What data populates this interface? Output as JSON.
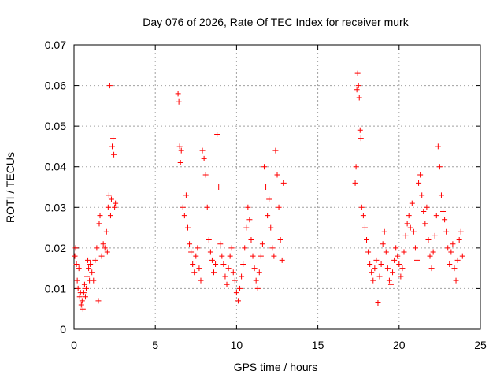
{
  "chart_data": {
    "type": "scatter",
    "title": "Day 076 of 2026, Rate Of TEC Index for receiver murk",
    "xlabel": "GPS time / hours",
    "ylabel": "ROTI / TECUs",
    "xlim": [
      0,
      25
    ],
    "ylim": [
      0,
      0.07
    ],
    "x_ticks": [
      0,
      5,
      10,
      15,
      20,
      25
    ],
    "x_tick_labels": [
      "0",
      "5",
      "10",
      "15",
      "20",
      "25"
    ],
    "y_ticks": [
      0,
      0.01,
      0.02,
      0.03,
      0.04,
      0.05,
      0.06,
      0.07
    ],
    "y_tick_labels": [
      "0",
      "0.01",
      "0.02",
      "0.03",
      "0.04",
      "0.05",
      "0.06",
      "0.07"
    ],
    "grid": true,
    "marker": "+",
    "series": [
      {
        "name": "ROTI",
        "color": "#ff0000",
        "points": [
          [
            0.05,
            0.018
          ],
          [
            0.1,
            0.02
          ],
          [
            0.15,
            0.016
          ],
          [
            0.2,
            0.012
          ],
          [
            0.25,
            0.01
          ],
          [
            0.3,
            0.015
          ],
          [
            0.35,
            0.008
          ],
          [
            0.4,
            0.009
          ],
          [
            0.45,
            0.006
          ],
          [
            0.5,
            0.007
          ],
          [
            0.55,
            0.005
          ],
          [
            0.6,
            0.009
          ],
          [
            0.65,
            0.011
          ],
          [
            0.7,
            0.008
          ],
          [
            0.75,
            0.01
          ],
          [
            0.8,
            0.013
          ],
          [
            0.85,
            0.017
          ],
          [
            0.9,
            0.015
          ],
          [
            0.95,
            0.012
          ],
          [
            1.0,
            0.016
          ],
          [
            1.1,
            0.014
          ],
          [
            1.2,
            0.012
          ],
          [
            1.3,
            0.017
          ],
          [
            1.4,
            0.02
          ],
          [
            1.5,
            0.007
          ],
          [
            1.55,
            0.026
          ],
          [
            1.6,
            0.028
          ],
          [
            1.7,
            0.018
          ],
          [
            1.8,
            0.021
          ],
          [
            1.9,
            0.02
          ],
          [
            2.0,
            0.024
          ],
          [
            2.05,
            0.019
          ],
          [
            2.1,
            0.03
          ],
          [
            2.15,
            0.033
          ],
          [
            2.2,
            0.06
          ],
          [
            2.25,
            0.028
          ],
          [
            2.3,
            0.032
          ],
          [
            2.35,
            0.045
          ],
          [
            2.4,
            0.047
          ],
          [
            2.45,
            0.043
          ],
          [
            2.5,
            0.03
          ],
          [
            2.55,
            0.031
          ],
          [
            6.4,
            0.058
          ],
          [
            6.45,
            0.056
          ],
          [
            6.5,
            0.045
          ],
          [
            6.55,
            0.041
          ],
          [
            6.6,
            0.044
          ],
          [
            6.7,
            0.03
          ],
          [
            6.8,
            0.028
          ],
          [
            6.9,
            0.033
          ],
          [
            7.0,
            0.025
          ],
          [
            7.1,
            0.021
          ],
          [
            7.2,
            0.019
          ],
          [
            7.3,
            0.016
          ],
          [
            7.4,
            0.014
          ],
          [
            7.5,
            0.018
          ],
          [
            7.6,
            0.02
          ],
          [
            7.7,
            0.015
          ],
          [
            7.8,
            0.012
          ],
          [
            7.9,
            0.044
          ],
          [
            8.0,
            0.042
          ],
          [
            8.1,
            0.038
          ],
          [
            8.2,
            0.03
          ],
          [
            8.3,
            0.022
          ],
          [
            8.4,
            0.019
          ],
          [
            8.5,
            0.017
          ],
          [
            8.6,
            0.014
          ],
          [
            8.7,
            0.016
          ],
          [
            8.8,
            0.048
          ],
          [
            8.9,
            0.035
          ],
          [
            9.0,
            0.021
          ],
          [
            9.1,
            0.018
          ],
          [
            9.2,
            0.016
          ],
          [
            9.3,
            0.013
          ],
          [
            9.4,
            0.011
          ],
          [
            9.5,
            0.015
          ],
          [
            9.6,
            0.018
          ],
          [
            9.7,
            0.02
          ],
          [
            9.8,
            0.014
          ],
          [
            9.9,
            0.012
          ],
          [
            10.0,
            0.009
          ],
          [
            10.1,
            0.007
          ],
          [
            10.2,
            0.01
          ],
          [
            10.3,
            0.013
          ],
          [
            10.4,
            0.016
          ],
          [
            10.5,
            0.02
          ],
          [
            10.6,
            0.025
          ],
          [
            10.7,
            0.03
          ],
          [
            10.8,
            0.027
          ],
          [
            10.9,
            0.022
          ],
          [
            11.0,
            0.018
          ],
          [
            11.1,
            0.015
          ],
          [
            11.2,
            0.012
          ],
          [
            11.3,
            0.01
          ],
          [
            11.4,
            0.014
          ],
          [
            11.5,
            0.018
          ],
          [
            11.6,
            0.021
          ],
          [
            11.7,
            0.04
          ],
          [
            11.8,
            0.035
          ],
          [
            11.9,
            0.028
          ],
          [
            12.0,
            0.032
          ],
          [
            12.1,
            0.025
          ],
          [
            12.2,
            0.02
          ],
          [
            12.3,
            0.018
          ],
          [
            12.4,
            0.044
          ],
          [
            12.5,
            0.038
          ],
          [
            12.6,
            0.03
          ],
          [
            12.7,
            0.022
          ],
          [
            12.8,
            0.017
          ],
          [
            12.9,
            0.036
          ],
          [
            17.3,
            0.036
          ],
          [
            17.35,
            0.04
          ],
          [
            17.4,
            0.059
          ],
          [
            17.45,
            0.063
          ],
          [
            17.5,
            0.06
          ],
          [
            17.55,
            0.057
          ],
          [
            17.6,
            0.049
          ],
          [
            17.65,
            0.047
          ],
          [
            17.7,
            0.03
          ],
          [
            17.8,
            0.028
          ],
          [
            17.9,
            0.025
          ],
          [
            18.0,
            0.022
          ],
          [
            18.1,
            0.019
          ],
          [
            18.2,
            0.016
          ],
          [
            18.3,
            0.014
          ],
          [
            18.4,
            0.012
          ],
          [
            18.5,
            0.015
          ],
          [
            18.6,
            0.017
          ],
          [
            18.7,
            0.0065
          ],
          [
            18.8,
            0.013
          ],
          [
            18.9,
            0.016
          ],
          [
            19.0,
            0.021
          ],
          [
            19.1,
            0.024
          ],
          [
            19.2,
            0.019
          ],
          [
            19.3,
            0.015
          ],
          [
            19.4,
            0.012
          ],
          [
            19.5,
            0.011
          ],
          [
            19.6,
            0.014
          ],
          [
            19.7,
            0.017
          ],
          [
            19.8,
            0.02
          ],
          [
            19.9,
            0.018
          ],
          [
            20.0,
            0.016
          ],
          [
            20.1,
            0.013
          ],
          [
            20.2,
            0.015
          ],
          [
            20.3,
            0.019
          ],
          [
            20.4,
            0.023
          ],
          [
            20.5,
            0.026
          ],
          [
            20.6,
            0.028
          ],
          [
            20.7,
            0.025
          ],
          [
            20.8,
            0.031
          ],
          [
            20.9,
            0.024
          ],
          [
            21.0,
            0.02
          ],
          [
            21.1,
            0.017
          ],
          [
            21.2,
            0.036
          ],
          [
            21.3,
            0.038
          ],
          [
            21.4,
            0.033
          ],
          [
            21.5,
            0.029
          ],
          [
            21.6,
            0.026
          ],
          [
            21.7,
            0.03
          ],
          [
            21.8,
            0.022
          ],
          [
            21.9,
            0.018
          ],
          [
            22.0,
            0.015
          ],
          [
            22.1,
            0.019
          ],
          [
            22.2,
            0.023
          ],
          [
            22.3,
            0.028
          ],
          [
            22.4,
            0.045
          ],
          [
            22.5,
            0.04
          ],
          [
            22.6,
            0.033
          ],
          [
            22.7,
            0.029
          ],
          [
            22.8,
            0.027
          ],
          [
            22.9,
            0.024
          ],
          [
            23.0,
            0.02
          ],
          [
            23.1,
            0.016
          ],
          [
            23.2,
            0.019
          ],
          [
            23.3,
            0.021
          ],
          [
            23.4,
            0.015
          ],
          [
            23.5,
            0.012
          ],
          [
            23.6,
            0.017
          ],
          [
            23.7,
            0.022
          ],
          [
            23.8,
            0.024
          ],
          [
            23.9,
            0.018
          ]
        ]
      }
    ]
  }
}
